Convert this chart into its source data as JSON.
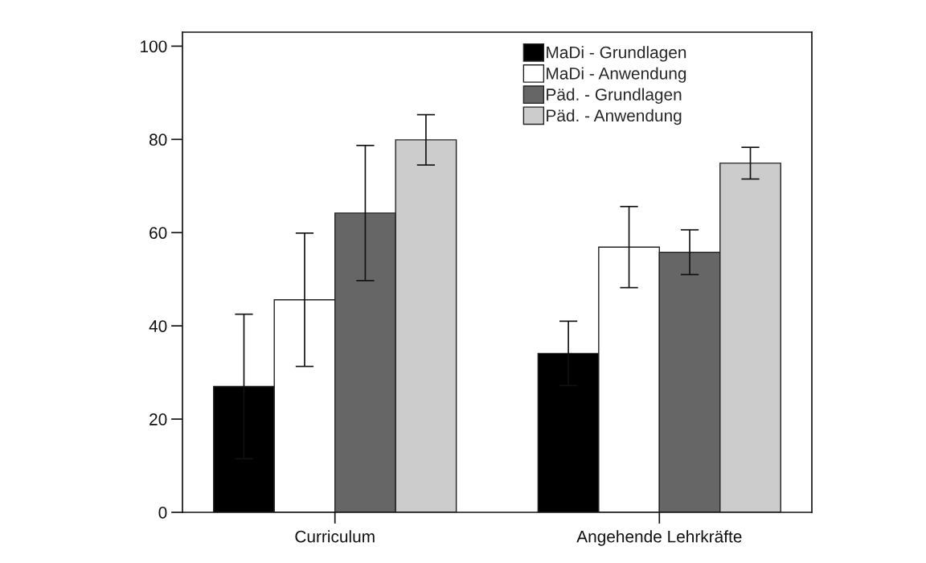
{
  "chart_data": {
    "type": "bar",
    "categories": [
      "Curriculum",
      "Angehende Lehrkräfte"
    ],
    "series": [
      {
        "name": "MaDi - Grundlagen",
        "color": "#000000",
        "values": [
          27.0,
          34.1
        ],
        "errors": [
          15.5,
          6.9
        ]
      },
      {
        "name": "MaDi - Anwendung",
        "color": "#ffffff",
        "values": [
          45.6,
          56.9
        ],
        "errors": [
          14.3,
          8.7
        ]
      },
      {
        "name": "Päd. - Grundlagen",
        "color": "#666666",
        "values": [
          64.2,
          55.8
        ],
        "errors": [
          14.5,
          4.8
        ]
      },
      {
        "name": "Päd. - Anwendung",
        "color": "#cccccc",
        "values": [
          79.9,
          74.9
        ],
        "errors": [
          5.4,
          3.4
        ]
      }
    ],
    "ylim": [
      0,
      103
    ],
    "yticks": [
      0,
      20,
      40,
      60,
      80,
      100
    ],
    "grid": false,
    "legend": "top right"
  }
}
